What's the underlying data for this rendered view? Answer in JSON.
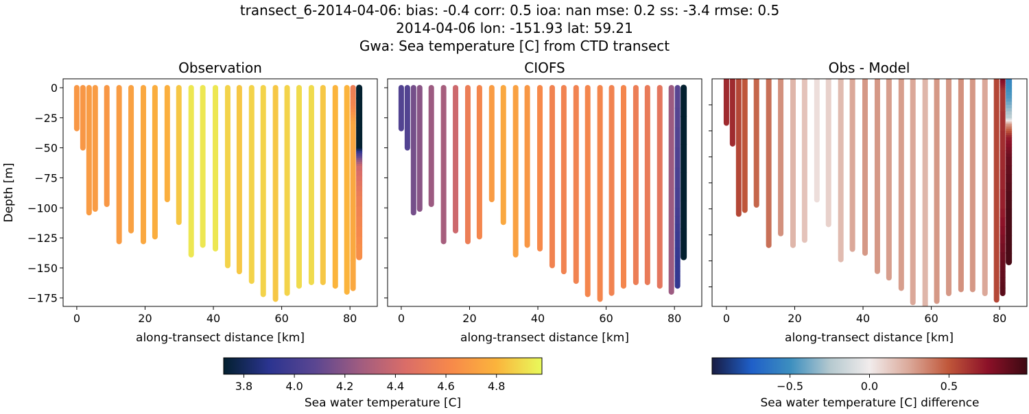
{
  "title_lines": [
    "transect_6-2014-04-06: bias: -0.4  corr: 0.5  ioa: nan  mse: 0.2  ss: -3.4  rmse: 0.5",
    "2014-04-06 lon: -151.93 lat: 59.21",
    "Gwa: Sea temperature [C] from CTD transect"
  ],
  "chart_data": [
    {
      "type": "scatter",
      "title": "Observation",
      "xlabel": "along-transect distance [km]",
      "ylabel": "Depth [m]",
      "xlim": [
        -4,
        88
      ],
      "ylim": [
        -182,
        7.4
      ],
      "xticks": [
        0,
        20,
        40,
        60,
        80
      ],
      "yticks": [
        0,
        -25,
        -50,
        -75,
        -100,
        -125,
        -150,
        -175
      ],
      "show_ytick_labels": true,
      "colormap": "thermal",
      "field": "obs"
    },
    {
      "type": "scatter",
      "title": "CIOFS",
      "xlabel": "along-transect distance [km]",
      "ylabel": "",
      "xlim": [
        -4,
        88
      ],
      "ylim": [
        -182,
        7.4
      ],
      "xticks": [
        0,
        20,
        40,
        60,
        80
      ],
      "yticks": [
        0,
        -25,
        -50,
        -75,
        -100,
        -125,
        -150,
        -175
      ],
      "show_ytick_labels": false,
      "colormap": "thermal",
      "field": "model"
    },
    {
      "type": "scatter",
      "title": "Obs - Model",
      "xlabel": "along-transect distance [km]",
      "ylabel": "",
      "xlim": [
        -4.2,
        88
      ],
      "ylim": [
        -175,
        0
      ],
      "xticks": [
        0,
        20,
        40,
        60,
        80
      ],
      "yticks": [
        -20,
        -40,
        -60,
        -80,
        -100,
        -120,
        -140,
        -160
      ],
      "show_ytick_labels": false,
      "colormap": "balance",
      "field": "diff"
    }
  ],
  "stations": {
    "distance_km": [
      0,
      1.8,
      3.6,
      5.4,
      8.8,
      12.4,
      15.9,
      19.5,
      22.9,
      26.5,
      29.9,
      33.5,
      36.9,
      40.6,
      44.2,
      47.6,
      51.2,
      54.6,
      58.2,
      61.6,
      65.1,
      68.7,
      72.1,
      75.7,
      79.1,
      80.9,
      82.7
    ],
    "max_depth_m": [
      -34,
      -50,
      -104,
      -101,
      -97,
      -128,
      -119,
      -128,
      -124,
      -93,
      -112,
      -139,
      -131,
      -134,
      -148,
      -153,
      -161,
      -172,
      -176,
      -171,
      -165,
      -162,
      -162,
      -165,
      -170,
      -167,
      -141
    ],
    "obs": [
      4.68,
      4.68,
      4.7,
      4.7,
      4.68,
      4.7,
      4.72,
      4.75,
      4.77,
      4.78,
      4.85,
      4.93,
      4.93,
      4.93,
      4.88,
      4.85,
      4.88,
      4.88,
      4.85,
      4.88,
      4.9,
      4.9,
      4.85,
      4.8,
      4.8,
      [
        [
          0,
          4.55
        ],
        [
          -15,
          4.6
        ],
        [
          -30,
          4.75
        ],
        [
          -167,
          4.75
        ]
      ],
      [
        [
          0,
          3.72
        ],
        [
          -50,
          3.72
        ],
        [
          -55,
          4.0
        ],
        [
          -65,
          4.4
        ],
        [
          -90,
          4.55
        ],
        [
          -141,
          4.65
        ]
      ]
    ],
    "model": [
      4.05,
      4.05,
      4.15,
      4.2,
      4.25,
      4.28,
      4.4,
      4.55,
      4.6,
      4.7,
      4.75,
      4.72,
      4.68,
      4.62,
      4.58,
      4.58,
      4.58,
      4.6,
      4.6,
      4.58,
      4.6,
      4.55,
      4.53,
      4.5,
      4.25,
      [
        [
          0,
          4.08
        ],
        [
          -100,
          4.0
        ],
        [
          -140,
          3.93
        ],
        [
          -165,
          3.93
        ]
      ],
      [
        [
          0,
          3.72
        ],
        [
          -141,
          3.72
        ]
      ]
    ],
    "diff": [
      0.65,
      0.65,
      0.55,
      0.5,
      0.45,
      0.42,
      0.32,
      0.2,
      0.15,
      0.05,
      0.1,
      0.18,
      0.25,
      0.3,
      0.3,
      0.28,
      0.28,
      0.25,
      0.2,
      0.3,
      0.3,
      0.32,
      0.3,
      0.25,
      0.55,
      [
        [
          0,
          0.8
        ],
        [
          -10,
          0.6
        ],
        [
          -100,
          0.7
        ],
        [
          -140,
          0.85
        ],
        [
          -165,
          0.9
        ]
      ],
      [
        [
          0,
          -0.55
        ],
        [
          -15,
          -0.45
        ],
        [
          -30,
          -0.2
        ],
        [
          -35,
          0.3
        ],
        [
          -45,
          0.7
        ],
        [
          -60,
          0.85
        ],
        [
          -100,
          0.95
        ],
        [
          -141,
          0.95
        ]
      ]
    ]
  },
  "colorbars": [
    {
      "label": "Sea water temperature [C]",
      "range": [
        3.72,
        4.98
      ],
      "ticks": [
        "3.8",
        "4.0",
        "4.2",
        "4.4",
        "4.6",
        "4.8"
      ],
      "colormap": "thermal"
    },
    {
      "label": "Sea water temperature [C] difference",
      "range": [
        -0.99,
        0.99
      ],
      "ticks": [
        "−0.5",
        "0.0",
        "0.5"
      ],
      "colormap": "balance"
    }
  ],
  "colormaps": {
    "thermal": [
      "#03202f",
      "#2b3490",
      "#5a4691",
      "#a05c80",
      "#da6d68",
      "#f7894a",
      "#fbb43c",
      "#e8fa5b"
    ],
    "balance": [
      "#181c43",
      "#1f5fc8",
      "#3d8fbf",
      "#b5c9cf",
      "#f1ecec",
      "#dba99a",
      "#c0573a",
      "#8c1128",
      "#3c0912"
    ]
  }
}
